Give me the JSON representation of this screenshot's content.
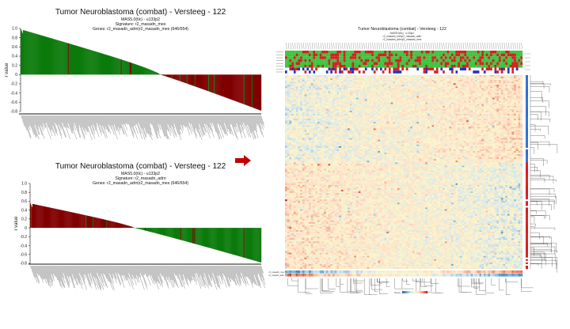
{
  "chart_data": [
    {
      "type": "bar",
      "title": "Tumor Neuroblastoma (combat) - Versteeg - 122",
      "subtitle_lines": [
        "MAS5.0(tlc) - u133p2",
        "Signature: r2_masadn_mes",
        "Genes: r2_masadn_adrn|r2_masadn_mes (646/654)"
      ],
      "ylabel": "r value",
      "ylim": [
        -0.8,
        1.0
      ],
      "yticks": [
        "1.0",
        "0.8",
        "0.6",
        "0.4",
        "0.2",
        "0",
        "-0.2",
        "-0.4",
        "-0.6",
        "-0.8"
      ],
      "n_samples": 122,
      "start_value": 0.98,
      "end_value": -0.78,
      "crossing_fraction": 0.58,
      "series": [
        {
          "name": "positive",
          "color": "#0b7a0b"
        },
        {
          "name": "negative",
          "color": "#800000"
        }
      ]
    },
    {
      "type": "bar",
      "title": "Tumor Neuroblastoma (combat) - Versteeg - 122",
      "subtitle_lines": [
        "MAS5.0(tlc) - u133p2",
        "Signature: r2_masadn_adrn",
        "Genes: r2_masadn_adrn|r2_masadn_mes (646/654)"
      ],
      "ylabel": "r value",
      "ylim": [
        -0.8,
        1.0
      ],
      "yticks": [
        "1.0",
        "0.8",
        "0.6",
        "0.4",
        "0.2",
        "0",
        "-0.2",
        "-0.4",
        "-0.6",
        "-0.8"
      ],
      "n_samples": 122,
      "start_value": 0.55,
      "end_value": -0.78,
      "crossing_fraction": 0.45,
      "series": [
        {
          "name": "positive",
          "color": "#800000"
        },
        {
          "name": "negative",
          "color": "#0b7a0b"
        }
      ]
    },
    {
      "type": "heatmap",
      "title": "Tumor Neuroblastoma (combat) - Versteeg - 122",
      "subtitle_lines": [
        "MAS5.0(tlc) - u133p2",
        "r2_masadn_mes|r2_masadn_adrn",
        "r2_masadn_adrn|r2_masadn_mes"
      ],
      "track_labels": [
        "r2_masadn_mes",
        "r2_masadn_adrn"
      ],
      "colorbar_label": "Score",
      "colormap": [
        "#2166ac",
        "#67a9cf",
        "#d1e5f0",
        "#fdf5c8",
        "#fddbc7",
        "#ef8a62",
        "#b2182b"
      ],
      "n_rows": 120,
      "n_cols": 122
    }
  ],
  "arrow_color": "#c00000"
}
